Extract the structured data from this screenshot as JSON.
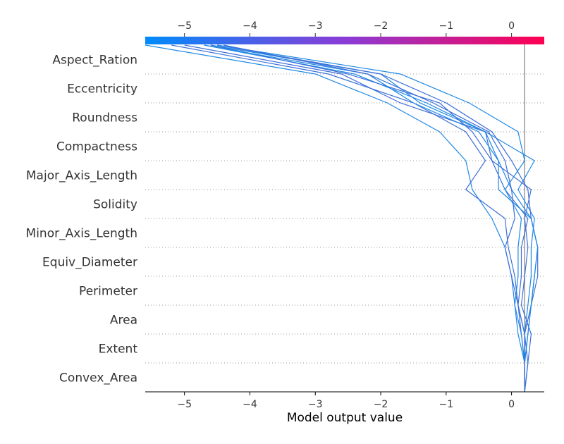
{
  "chart_data": {
    "type": "line",
    "title": "",
    "xlabel": "Model output value",
    "ylabel": "",
    "xlim": [
      -5.6,
      0.5
    ],
    "xticks": [
      -5,
      -4,
      -3,
      -2,
      -1,
      0
    ],
    "xtick_labels": [
      "−5",
      "−4",
      "−3",
      "−2",
      "−1",
      "0"
    ],
    "base_value": 0.2,
    "grid": "dotted horizontal",
    "colorbar": {
      "position": "top",
      "colors": [
        "#008bfb",
        "#ff0052"
      ]
    },
    "features": [
      "Aspect_Ration",
      "Eccentricity",
      "Roundness",
      "Compactness",
      "Major_Axis_Length",
      "Solidity",
      "Minor_Axis_Length",
      "Equiv_Diameter",
      "Perimeter",
      "Area",
      "Extent",
      "Convex_Area"
    ],
    "series": [
      {
        "values": [
          -5.6,
          -3.0,
          -1.9,
          -1.1,
          -0.7,
          -0.6,
          -0.3,
          -0.1,
          0.0,
          0.05,
          0.1,
          0.2,
          0.2
        ]
      },
      {
        "values": [
          -5.2,
          -2.8,
          -1.5,
          -0.7,
          -0.4,
          -0.7,
          -0.1,
          -0.05,
          0.05,
          0.1,
          0.15,
          0.2,
          0.2
        ]
      },
      {
        "values": [
          -4.7,
          -2.4,
          -1.3,
          -0.4,
          -0.2,
          0.0,
          0.3,
          0.4,
          0.35,
          0.3,
          0.25,
          0.2,
          0.2
        ]
      },
      {
        "values": [
          -5.0,
          -2.6,
          -1.7,
          -0.4,
          -0.3,
          -0.1,
          0.25,
          0.15,
          0.15,
          0.1,
          0.2,
          0.2,
          0.2
        ]
      },
      {
        "values": [
          -4.6,
          -2.0,
          -1.4,
          -0.4,
          0.35,
          0.1,
          0.35,
          0.3,
          0.3,
          0.25,
          0.2,
          0.2,
          0.2
        ]
      },
      {
        "values": [
          -4.5,
          -2.0,
          -1.0,
          -0.3,
          0.0,
          0.25,
          0.3,
          0.4,
          0.4,
          0.3,
          0.2,
          0.25,
          0.2
        ]
      },
      {
        "values": [
          -4.5,
          -1.7,
          -0.65,
          0.1,
          0.2,
          -0.1,
          0.15,
          0.1,
          0.1,
          0.05,
          0.15,
          0.2,
          0.2
        ]
      },
      {
        "values": [
          -4.6,
          -2.5,
          -1.1,
          -0.6,
          -0.3,
          0.3,
          0.2,
          0.25,
          0.2,
          0.15,
          0.3,
          0.25,
          0.2
        ]
      },
      {
        "values": [
          -4.7,
          -2.2,
          -1.5,
          -0.5,
          -0.2,
          -0.2,
          0.3,
          0.4,
          0.35,
          0.3,
          0.25,
          0.2,
          0.2
        ]
      },
      {
        "values": [
          -4.4,
          -2.2,
          -1.2,
          -0.35,
          -0.1,
          0.0,
          0.05,
          -0.1,
          0.0,
          0.1,
          0.2,
          0.2,
          0.2
        ]
      }
    ]
  }
}
